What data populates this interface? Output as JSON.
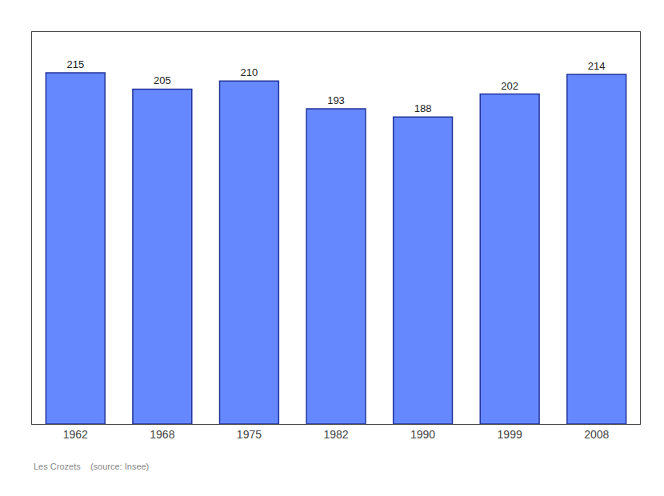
{
  "chart_data": {
    "type": "bar",
    "categories": [
      "1962",
      "1968",
      "1975",
      "1982",
      "1990",
      "1999",
      "2008"
    ],
    "values": [
      215,
      205,
      210,
      193,
      188,
      202,
      214
    ],
    "color": "#6688ff",
    "ylim": [
      0,
      240
    ],
    "grid": false,
    "data_labels": true,
    "tick_labels": "x",
    "annotations": [
      "Les Crozets    (source: Insee)"
    ]
  }
}
